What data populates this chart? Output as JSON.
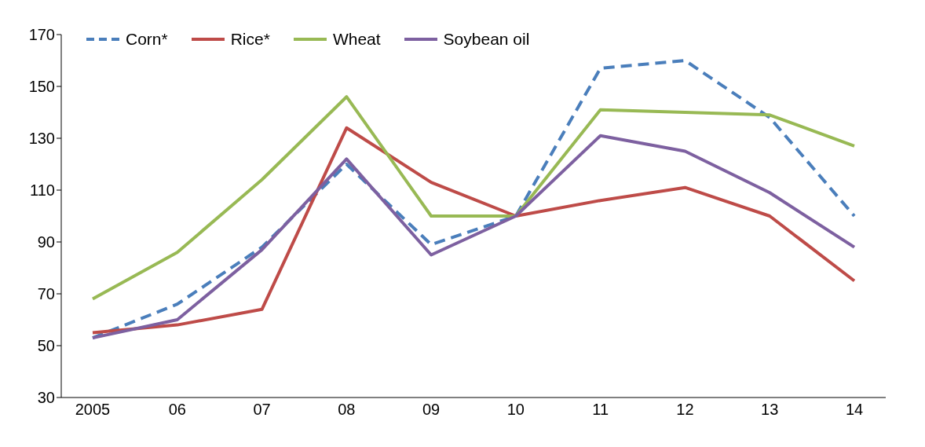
{
  "chart_data": {
    "type": "line",
    "categories": [
      "2005",
      "06",
      "07",
      "08",
      "09",
      "10",
      "11",
      "12",
      "13",
      "14"
    ],
    "series": [
      {
        "name": "Corn*",
        "color": "#4a7ebb",
        "line_style": "dashed",
        "values": [
          53,
          66,
          88,
          120,
          89,
          100,
          157,
          160,
          138,
          100
        ]
      },
      {
        "name": "Rice*",
        "color": "#be4b48",
        "values": [
          55,
          58,
          64,
          134,
          113,
          100,
          106,
          111,
          100,
          75
        ]
      },
      {
        "name": "Wheat",
        "color": "#98b954",
        "values": [
          68,
          86,
          114,
          146,
          100,
          100,
          141,
          140,
          139,
          127
        ]
      },
      {
        "name": "Soybean oil",
        "color": "#7d60a0",
        "values": [
          53,
          60,
          87,
          122,
          85,
          100,
          131,
          125,
          109,
          88
        ]
      }
    ],
    "ylim": [
      30,
      170
    ],
    "yticks": [
      30,
      50,
      70,
      90,
      110,
      130,
      150,
      170
    ],
    "grid": false,
    "legend": "top left",
    "marker": "none",
    "line_style": "solid"
  }
}
